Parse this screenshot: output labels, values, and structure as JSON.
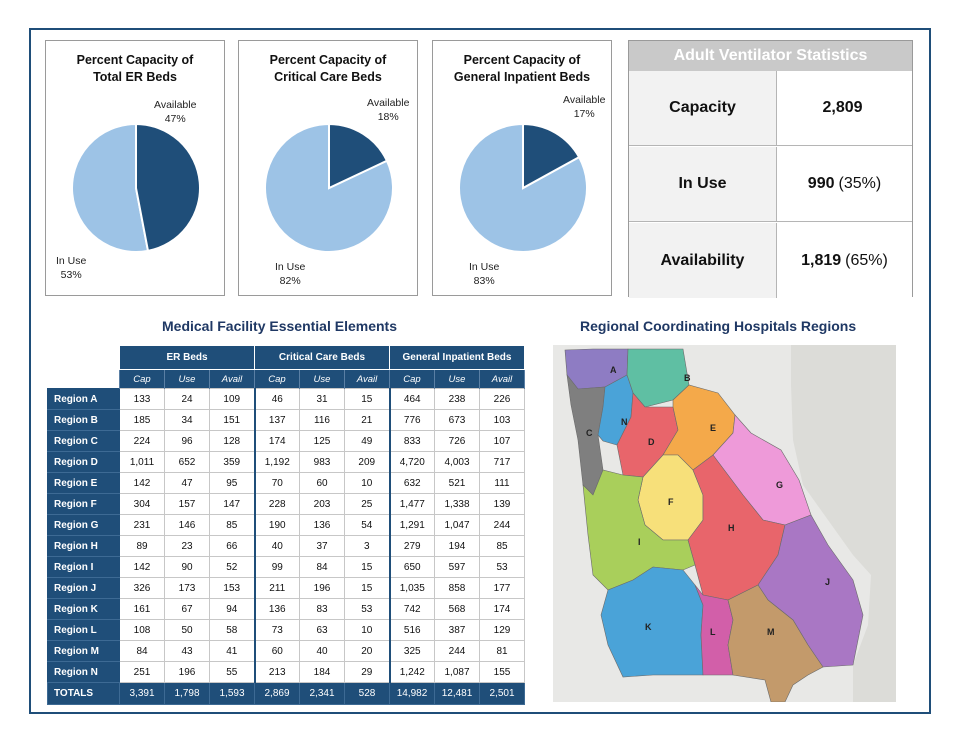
{
  "pies": [
    {
      "id": "er",
      "title_line1": "Percent Capacity of",
      "title_line2": "Total ER Beds",
      "available_label": "Available",
      "available_pct": "47%",
      "inuse_label": "In Use",
      "inuse_pct": "53%",
      "available_value": 47
    },
    {
      "id": "cc",
      "title_line1": "Percent Capacity of",
      "title_line2": "Critical Care Beds",
      "available_label": "Available",
      "available_pct": "18%",
      "inuse_label": "In Use",
      "inuse_pct": "82%",
      "available_value": 18
    },
    {
      "id": "gi",
      "title_line1": "Percent Capacity of",
      "title_line2": "General Inpatient Beds",
      "available_label": "Available",
      "available_pct": "17%",
      "inuse_label": "In Use",
      "inuse_pct": "83%",
      "available_value": 17
    }
  ],
  "colors": {
    "dark": "#1f4e79",
    "light": "#9dc3e6"
  },
  "ventilator": {
    "title": "Adult Ventilator Statistics",
    "rows": [
      {
        "label": "Capacity",
        "value": "2,809",
        "pct": ""
      },
      {
        "label": "In Use",
        "value": "990",
        "pct": "(35%)"
      },
      {
        "label": "Availability",
        "value": "1,819",
        "pct": "(65%)"
      }
    ]
  },
  "table": {
    "title": "Medical Facility Essential Elements",
    "groups": [
      "ER Beds",
      "Critical Care Beds",
      "General Inpatient Beds"
    ],
    "subheaders": [
      "Cap",
      "Use",
      "Avail",
      "Cap",
      "Use",
      "Avail",
      "Cap",
      "Use",
      "Avail"
    ],
    "rows": [
      {
        "region": "Region A",
        "values": [
          "133",
          "24",
          "109",
          "46",
          "31",
          "15",
          "464",
          "238",
          "226"
        ]
      },
      {
        "region": "Region B",
        "values": [
          "185",
          "34",
          "151",
          "137",
          "116",
          "21",
          "776",
          "673",
          "103"
        ]
      },
      {
        "region": "Region C",
        "values": [
          "224",
          "96",
          "128",
          "174",
          "125",
          "49",
          "833",
          "726",
          "107"
        ]
      },
      {
        "region": "Region D",
        "values": [
          "1,011",
          "652",
          "359",
          "1,192",
          "983",
          "209",
          "4,720",
          "4,003",
          "717"
        ]
      },
      {
        "region": "Region E",
        "values": [
          "142",
          "47",
          "95",
          "70",
          "60",
          "10",
          "632",
          "521",
          "111"
        ]
      },
      {
        "region": "Region F",
        "values": [
          "304",
          "157",
          "147",
          "228",
          "203",
          "25",
          "1,477",
          "1,338",
          "139"
        ]
      },
      {
        "region": "Region G",
        "values": [
          "231",
          "146",
          "85",
          "190",
          "136",
          "54",
          "1,291",
          "1,047",
          "244"
        ]
      },
      {
        "region": "Region H",
        "values": [
          "89",
          "23",
          "66",
          "40",
          "37",
          "3",
          "279",
          "194",
          "85"
        ]
      },
      {
        "region": "Region I",
        "values": [
          "142",
          "90",
          "52",
          "99",
          "84",
          "15",
          "650",
          "597",
          "53"
        ]
      },
      {
        "region": "Region J",
        "values": [
          "326",
          "173",
          "153",
          "211",
          "196",
          "15",
          "1,035",
          "858",
          "177"
        ]
      },
      {
        "region": "Region K",
        "values": [
          "161",
          "67",
          "94",
          "136",
          "83",
          "53",
          "742",
          "568",
          "174"
        ]
      },
      {
        "region": "Region L",
        "values": [
          "108",
          "50",
          "58",
          "73",
          "63",
          "10",
          "516",
          "387",
          "129"
        ]
      },
      {
        "region": "Region M",
        "values": [
          "84",
          "43",
          "41",
          "60",
          "40",
          "20",
          "325",
          "244",
          "81"
        ]
      },
      {
        "region": "Region N",
        "values": [
          "251",
          "196",
          "55",
          "213",
          "184",
          "29",
          "1,242",
          "1,087",
          "155"
        ]
      }
    ],
    "totals": {
      "region": "TOTALS",
      "values": [
        "3,391",
        "1,798",
        "1,593",
        "2,869",
        "2,341",
        "528",
        "14,982",
        "12,481",
        "2,501"
      ]
    }
  },
  "map": {
    "title": "Regional Coordinating Hospitals Regions",
    "regions": [
      {
        "label": "A",
        "color": "#8e7cc3"
      },
      {
        "label": "B",
        "color": "#5fbfa3"
      },
      {
        "label": "C",
        "color": "#7f7f7f"
      },
      {
        "label": "N",
        "color": "#4aa3d8"
      },
      {
        "label": "D",
        "color": "#e8656b"
      },
      {
        "label": "E",
        "color": "#f4a94a"
      },
      {
        "label": "G",
        "color": "#ee9ad9"
      },
      {
        "label": "F",
        "color": "#f7e07a"
      },
      {
        "label": "H",
        "color": "#e8656b"
      },
      {
        "label": "I",
        "color": "#a9cf5b"
      },
      {
        "label": "J",
        "color": "#a977c4"
      },
      {
        "label": "K",
        "color": "#4aa3d8"
      },
      {
        "label": "L",
        "color": "#d25fa9"
      },
      {
        "label": "M",
        "color": "#c39a6b"
      }
    ]
  },
  "chart_data": [
    {
      "type": "pie",
      "title": "Percent Capacity of Total ER Beds",
      "categories": [
        "Available",
        "In Use"
      ],
      "values": [
        47,
        53
      ]
    },
    {
      "type": "pie",
      "title": "Percent Capacity of Critical Care Beds",
      "categories": [
        "Available",
        "In Use"
      ],
      "values": [
        18,
        82
      ]
    },
    {
      "type": "pie",
      "title": "Percent Capacity of General Inpatient Beds",
      "categories": [
        "Available",
        "In Use"
      ],
      "values": [
        17,
        83
      ]
    }
  ]
}
